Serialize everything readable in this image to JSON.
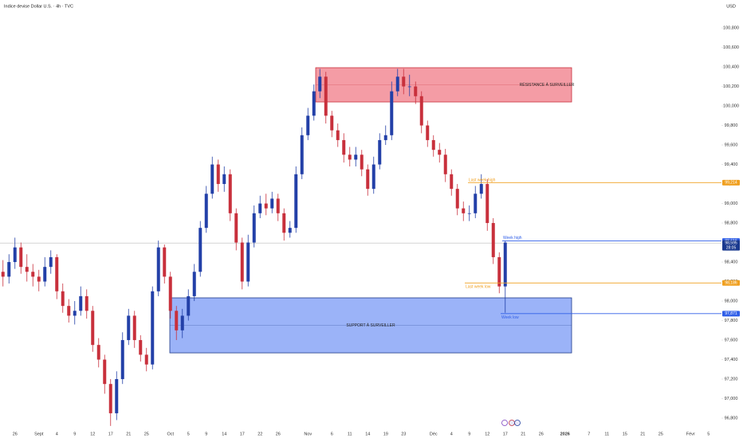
{
  "chart_data": {
    "type": "candlestick",
    "title": "Indice devise Dollar U.S. · 4h · TVC",
    "currency": "USD",
    "up_color": "#2340a8",
    "down_color": "#c8303c",
    "ylim": [
      96678,
      101086
    ],
    "yticks": [
      {
        "value": 96800,
        "label": "96,800"
      },
      {
        "value": 97000,
        "label": "97,000"
      },
      {
        "value": 97200,
        "label": "97,200"
      },
      {
        "value": 97400,
        "label": "97,400"
      },
      {
        "value": 97600,
        "label": "97,600"
      },
      {
        "value": 97800,
        "label": "97,800"
      },
      {
        "value": 98000,
        "label": "98,000"
      },
      {
        "value": 98200,
        "label": "98,200"
      },
      {
        "value": 98400,
        "label": "98,400"
      },
      {
        "value": 98600,
        "label": "98,600"
      },
      {
        "value": 98800,
        "label": "98,800"
      },
      {
        "value": 99000,
        "label": "99,000"
      },
      {
        "value": 99200,
        "label": "99,200"
      },
      {
        "value": 99400,
        "label": "99,400"
      },
      {
        "value": 99600,
        "label": "99,600"
      },
      {
        "value": 99800,
        "label": "99,800"
      },
      {
        "value": 100000,
        "label": "100,000"
      },
      {
        "value": 100200,
        "label": "100,200"
      },
      {
        "value": 100400,
        "label": "100,400"
      },
      {
        "value": 100600,
        "label": "100,600"
      },
      {
        "value": 100800,
        "label": "100,800"
      }
    ],
    "categories": [
      null,
      null,
      "26",
      null,
      null,
      null,
      "Sept",
      null,
      null,
      "4",
      null,
      null,
      "9",
      null,
      null,
      "12",
      null,
      null,
      "17",
      null,
      null,
      "21",
      null,
      null,
      "25",
      null,
      null,
      null,
      "Oct",
      null,
      null,
      "5",
      null,
      null,
      "9",
      null,
      null,
      "14",
      null,
      null,
      "17",
      null,
      null,
      "22",
      null,
      null,
      "26",
      null,
      null,
      null,
      null,
      "Nov",
      null,
      null,
      null,
      "6",
      null,
      null,
      "11",
      null,
      null,
      "14",
      null,
      null,
      "19",
      null,
      null,
      "23",
      null,
      null,
      null,
      null,
      "Déc",
      null,
      null,
      "4",
      null,
      null,
      "9",
      null,
      null,
      "12",
      null,
      null,
      "17",
      null,
      null,
      "21",
      null,
      null,
      "26",
      null,
      null,
      null,
      "2026",
      null,
      null,
      null,
      "7",
      null,
      null,
      "11",
      null,
      null,
      "15",
      null,
      null,
      "21",
      null,
      null,
      "25",
      null,
      null,
      null,
      null,
      "Févr",
      null,
      null,
      "5",
      null
    ],
    "open": [
      98300,
      98250,
      98400,
      98550,
      98350,
      98300,
      98250,
      98200,
      98350,
      98450,
      98100,
      97950,
      97850,
      97900,
      98050,
      97900,
      97550,
      97400,
      97150,
      96850,
      97200,
      97600,
      97850,
      97600,
      97450,
      97350,
      98100,
      98550,
      98250,
      97900,
      97700,
      97850,
      98050,
      98300,
      98750,
      99100,
      99400,
      99200,
      99300,
      98900,
      98600,
      98200,
      98600,
      98900,
      99000,
      98950,
      99050,
      98900,
      98700,
      98750,
      99300,
      99700,
      99900,
      100150,
      100300,
      99900,
      99750,
      99650,
      99500,
      99450,
      99500,
      99350,
      99150,
      99400,
      99650,
      99700,
      100150,
      100300,
      100200,
      100200,
      100100,
      99800,
      99650,
      99550,
      99500,
      99300,
      99150,
      98950,
      98900,
      98900,
      99100,
      99200,
      98800,
      98450,
      98150,
      null,
      null,
      null,
      null,
      null,
      null,
      null,
      null,
      null,
      null,
      null,
      null,
      null,
      null,
      null,
      null,
      null,
      null,
      null,
      null,
      null,
      null,
      null,
      null,
      null,
      null,
      null,
      null,
      null,
      null,
      null,
      null,
      null,
      null,
      null
    ],
    "high": [
      98420,
      98480,
      98650,
      98600,
      98480,
      98380,
      98320,
      98450,
      98520,
      98480,
      98180,
      98020,
      98000,
      98150,
      98120,
      97950,
      97620,
      97450,
      97200,
      97280,
      97680,
      97920,
      97900,
      97650,
      97520,
      98150,
      98620,
      98580,
      98300,
      97950,
      97920,
      98120,
      98380,
      98820,
      99180,
      99480,
      99450,
      99380,
      99350,
      98950,
      98650,
      98680,
      98980,
      99080,
      99100,
      99120,
      99100,
      98950,
      98820,
      99380,
      99780,
      99980,
      100220,
      100380,
      100350,
      99950,
      99820,
      99720,
      99580,
      99580,
      99550,
      99400,
      99480,
      99720,
      99800,
      100250,
      100380,
      100380,
      100320,
      100250,
      100150,
      99850,
      99700,
      99620,
      99560,
      99350,
      99200,
      99020,
      98980,
      99180,
      99300,
      99250,
      98850,
      98500,
      98620,
      null,
      null,
      null,
      null,
      null,
      null,
      null,
      null,
      null,
      null,
      null,
      null,
      null,
      null,
      null,
      null,
      null,
      null,
      null,
      null,
      null,
      null,
      null,
      null,
      null,
      null,
      null,
      null,
      null,
      null,
      null,
      null,
      null,
      null,
      null
    ],
    "low": [
      98150,
      98180,
      98330,
      98280,
      98200,
      98150,
      98100,
      98150,
      98280,
      98020,
      97880,
      97780,
      97760,
      97850,
      97820,
      97480,
      97320,
      97050,
      96720,
      96780,
      97150,
      97550,
      97520,
      97380,
      97280,
      97300,
      98050,
      98180,
      97820,
      97600,
      97620,
      97800,
      98000,
      98250,
      98700,
      99050,
      99120,
      99120,
      98820,
      98520,
      98120,
      98150,
      98550,
      98850,
      98880,
      98900,
      98820,
      98620,
      98650,
      98700,
      99250,
      99650,
      99850,
      100080,
      99820,
      99680,
      99580,
      99420,
      99380,
      99380,
      99280,
      99080,
      99100,
      99350,
      99600,
      99650,
      100100,
      100120,
      100100,
      100020,
      99720,
      99580,
      99480,
      99420,
      99220,
      99080,
      98880,
      98820,
      98820,
      98850,
      99050,
      98720,
      98380,
      98080,
      97880,
      null,
      null,
      null,
      null,
      null,
      null,
      null,
      null,
      null,
      null,
      null,
      null,
      null,
      null,
      null,
      null,
      null,
      null,
      null,
      null,
      null,
      null,
      null,
      null,
      null,
      null,
      null,
      null,
      null,
      null,
      null,
      null,
      null,
      null,
      null
    ],
    "close": [
      98250,
      98400,
      98550,
      98350,
      98300,
      98250,
      98200,
      98350,
      98450,
      98100,
      97950,
      97850,
      97900,
      98050,
      97900,
      97550,
      97400,
      97150,
      96850,
      97200,
      97600,
      97850,
      97600,
      97450,
      97350,
      98100,
      98550,
      98250,
      97900,
      97700,
      97850,
      98050,
      98300,
      98750,
      99100,
      99400,
      99200,
      99300,
      98900,
      98600,
      98200,
      98600,
      98900,
      99000,
      98950,
      99050,
      98900,
      98700,
      98750,
      99300,
      99700,
      99900,
      100150,
      100300,
      99900,
      99750,
      99650,
      99500,
      99450,
      99500,
      99350,
      99150,
      99400,
      99650,
      99700,
      100150,
      100300,
      100200,
      100200,
      100100,
      99800,
      99650,
      99550,
      99500,
      99300,
      99150,
      98950,
      98900,
      98900,
      99100,
      99200,
      98800,
      98450,
      98150,
      98600,
      null,
      null,
      null,
      null,
      null,
      null,
      null,
      null,
      null,
      null,
      null,
      null,
      null,
      null,
      null,
      null,
      null,
      null,
      null,
      null,
      null,
      null,
      null,
      null,
      null,
      null,
      null,
      null,
      null,
      null,
      null,
      null,
      null,
      null,
      null
    ],
    "zones": [
      {
        "label": "RÉSISTANCE À SURVEILLER",
        "low": 100041,
        "high": 100392,
        "color": "#f28b95",
        "border": "#c8303c"
      },
      {
        "label": "SUPPORT À SURVEILLER",
        "low": 97469,
        "high": 98033,
        "color": "#8aa6f7",
        "border": "#1e3a8a"
      }
    ],
    "levels": [
      {
        "label": "Last week high",
        "value": 99214,
        "value_label": "99,214",
        "color": "#f0a020"
      },
      {
        "label": "Last week low",
        "value": 98186,
        "value_label": "98,186",
        "color": "#f0a020"
      },
      {
        "label": "Week high",
        "value": 98616,
        "value_label": "98,616",
        "color": "#2f5ee8"
      },
      {
        "label": "Week low",
        "value": 97871,
        "value_label": "97,871",
        "color": "#2f5ee8"
      }
    ],
    "last_price": {
      "value": 98595,
      "value_label": "98,595",
      "countdown": "28:05",
      "color": "#1b3a8f"
    }
  }
}
